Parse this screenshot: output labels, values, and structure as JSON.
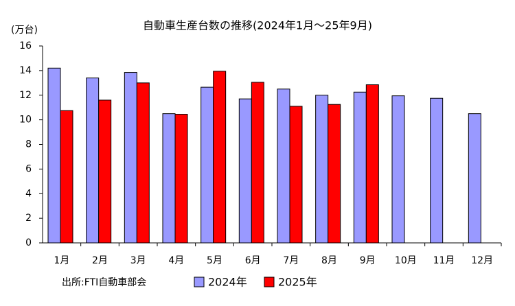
{
  "chart_data": {
    "type": "bar",
    "title": "自動車生産台数の推移(2024年1月～25年9月)",
    "y_label": "(万台)",
    "source": "出所:FTI自動車部会",
    "categories": [
      "1月",
      "2月",
      "3月",
      "4月",
      "5月",
      "6月",
      "7月",
      "8月",
      "9月",
      "10月",
      "11月",
      "12月"
    ],
    "series": [
      {
        "name": "2024年",
        "color": "#9999ff",
        "values": [
          14.2,
          13.4,
          13.85,
          10.5,
          12.65,
          11.7,
          12.5,
          12.0,
          12.25,
          11.95,
          11.75,
          10.5
        ]
      },
      {
        "name": "2025年",
        "color": "#ff0000",
        "values": [
          10.75,
          11.6,
          13.0,
          10.45,
          13.95,
          13.05,
          11.1,
          11.25,
          12.85,
          null,
          null,
          null
        ]
      }
    ],
    "ylim": [
      0,
      16
    ],
    "yticks": [
      0,
      2,
      4,
      6,
      8,
      10,
      12,
      14,
      16
    ],
    "grid": false,
    "legend": "bottom"
  }
}
